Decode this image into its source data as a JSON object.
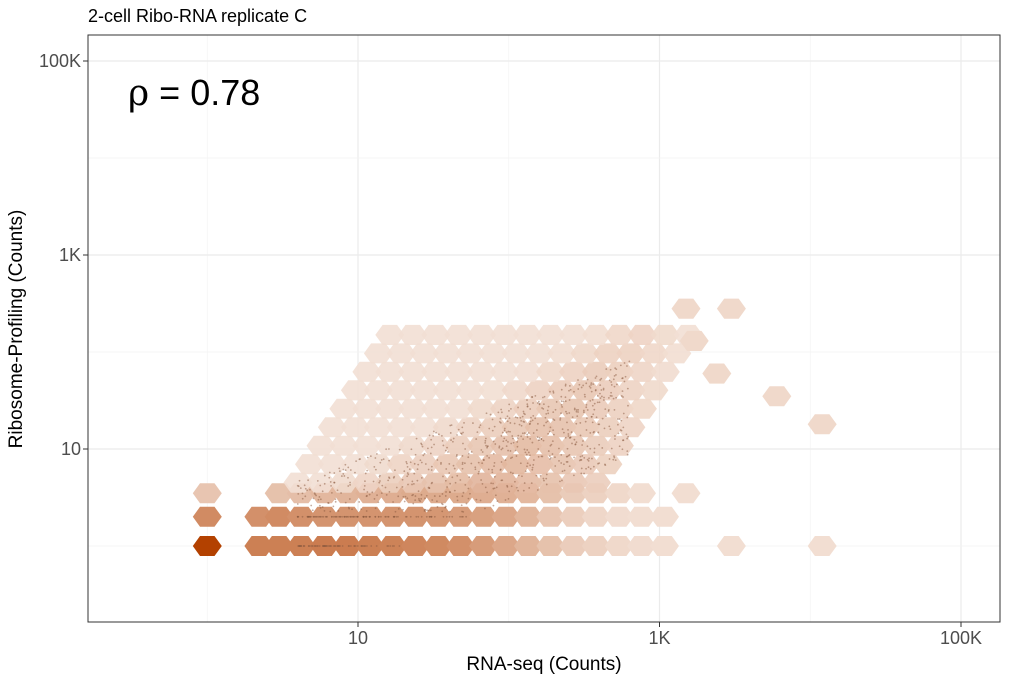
{
  "chart_data": {
    "type": "heatmap",
    "subtype": "hexbin-density",
    "title": "2-cell Ribo-RNA replicate C",
    "xlabel": "RNA-seq (Counts)",
    "ylabel": "Ribosome-Profiling (Counts)",
    "x_scale": "log10",
    "y_scale": "log10",
    "xlim": [
      0.55,
      200000
    ],
    "ylim": [
      0.4,
      200000
    ],
    "x_ticks": [
      {
        "value": 10,
        "label": "10"
      },
      {
        "value": 1000,
        "label": "1K"
      },
      {
        "value": 100000,
        "label": "100K"
      }
    ],
    "y_ticks": [
      {
        "value": 10,
        "label": "10"
      },
      {
        "value": 1000,
        "label": "1K"
      },
      {
        "value": 100000,
        "label": "100K"
      }
    ],
    "grid": true,
    "legend": "none",
    "annotation": {
      "text": "ρ = 0.78",
      "symbol": "ρ",
      "value_text": " = 0.78"
    },
    "colors": {
      "low": "#f5e6dd",
      "high": "#b34100",
      "points": "#8a5a40",
      "panel_border": "#333333",
      "grid": "#ebebeb"
    },
    "bins": [
      {
        "x": 1,
        "y": 1,
        "density": 1.0
      },
      {
        "x": 2.2,
        "y": 1,
        "density": 0.62
      },
      {
        "x": 3,
        "y": 1,
        "density": 0.62
      },
      {
        "x": 4.2,
        "y": 1,
        "density": 0.62
      },
      {
        "x": 6,
        "y": 1,
        "density": 0.64
      },
      {
        "x": 8.5,
        "y": 1,
        "density": 0.64
      },
      {
        "x": 12,
        "y": 1,
        "density": 0.62
      },
      {
        "x": 17,
        "y": 1,
        "density": 0.6
      },
      {
        "x": 24,
        "y": 1,
        "density": 0.58
      },
      {
        "x": 34,
        "y": 1,
        "density": 0.56
      },
      {
        "x": 48,
        "y": 1,
        "density": 0.52
      },
      {
        "x": 68,
        "y": 1,
        "density": 0.45
      },
      {
        "x": 96,
        "y": 1,
        "density": 0.38
      },
      {
        "x": 135,
        "y": 1,
        "density": 0.3
      },
      {
        "x": 190,
        "y": 1,
        "density": 0.22
      },
      {
        "x": 270,
        "y": 1,
        "density": 0.15
      },
      {
        "x": 380,
        "y": 1,
        "density": 0.12
      },
      {
        "x": 540,
        "y": 1,
        "density": 0.08
      },
      {
        "x": 760,
        "y": 1,
        "density": 0.06
      },
      {
        "x": 1080,
        "y": 1,
        "density": 0.05
      },
      {
        "x": 3000,
        "y": 1,
        "density": 0.05
      },
      {
        "x": 12000,
        "y": 1,
        "density": 0.05
      },
      {
        "x": 1,
        "y": 2,
        "density": 0.55
      },
      {
        "x": 2.2,
        "y": 2,
        "density": 0.52
      },
      {
        "x": 3,
        "y": 2,
        "density": 0.55
      },
      {
        "x": 4.2,
        "y": 2,
        "density": 0.52
      },
      {
        "x": 6,
        "y": 2,
        "density": 0.5
      },
      {
        "x": 8.5,
        "y": 2,
        "density": 0.5
      },
      {
        "x": 12,
        "y": 2,
        "density": 0.5
      },
      {
        "x": 17,
        "y": 2,
        "density": 0.5
      },
      {
        "x": 24,
        "y": 2,
        "density": 0.5
      },
      {
        "x": 34,
        "y": 2,
        "density": 0.48
      },
      {
        "x": 48,
        "y": 2,
        "density": 0.45
      },
      {
        "x": 68,
        "y": 2,
        "density": 0.42
      },
      {
        "x": 96,
        "y": 2,
        "density": 0.38
      },
      {
        "x": 135,
        "y": 2,
        "density": 0.3
      },
      {
        "x": 190,
        "y": 2,
        "density": 0.2
      },
      {
        "x": 270,
        "y": 2,
        "density": 0.14
      },
      {
        "x": 380,
        "y": 2,
        "density": 0.09
      },
      {
        "x": 540,
        "y": 2,
        "density": 0.06
      },
      {
        "x": 760,
        "y": 2,
        "density": 0.05
      },
      {
        "x": 1080,
        "y": 2,
        "density": 0.05
      },
      {
        "x": 1,
        "y": 3.5,
        "density": 0.2
      },
      {
        "x": 3,
        "y": 3.5,
        "density": 0.22
      },
      {
        "x": 4.2,
        "y": 3.5,
        "density": 0.24
      },
      {
        "x": 6,
        "y": 3.5,
        "density": 0.28
      },
      {
        "x": 8.5,
        "y": 3.5,
        "density": 0.3
      },
      {
        "x": 12,
        "y": 3.5,
        "density": 0.32
      },
      {
        "x": 17,
        "y": 3.5,
        "density": 0.34
      },
      {
        "x": 24,
        "y": 3.5,
        "density": 0.36
      },
      {
        "x": 34,
        "y": 3.5,
        "density": 0.36
      },
      {
        "x": 48,
        "y": 3.5,
        "density": 0.36
      },
      {
        "x": 68,
        "y": 3.5,
        "density": 0.34
      },
      {
        "x": 96,
        "y": 3.5,
        "density": 0.32
      },
      {
        "x": 135,
        "y": 3.5,
        "density": 0.28
      },
      {
        "x": 190,
        "y": 3.5,
        "density": 0.22
      },
      {
        "x": 270,
        "y": 3.5,
        "density": 0.16
      },
      {
        "x": 380,
        "y": 3.5,
        "density": 0.12
      },
      {
        "x": 540,
        "y": 3.5,
        "density": 0.08
      },
      {
        "x": 760,
        "y": 3.5,
        "density": 0.05
      },
      {
        "x": 1500,
        "y": 3.5,
        "density": 0.05
      }
    ]
  }
}
